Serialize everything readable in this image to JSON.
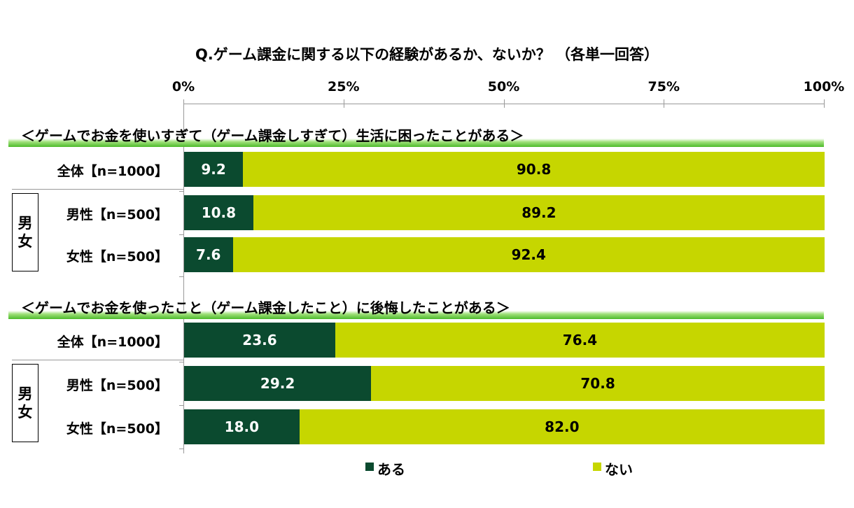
{
  "chart_data": {
    "type": "bar",
    "orientation": "horizontal",
    "stacked": true,
    "title": "Q.ゲーム課金に関する以下の経験があるか、ないか？ （各単一回答）",
    "xlim": [
      0,
      100
    ],
    "xticks": [
      "0%",
      "25%",
      "50%",
      "75%",
      "100%"
    ],
    "legend": [
      {
        "name": "ある",
        "color": "#0b4a2f"
      },
      {
        "name": "ない",
        "color": "#c6d600"
      }
    ],
    "legend_position": "bottom",
    "groups": [
      {
        "heading": "＜ゲームでお金を使いすぎて（ゲーム課金しすぎて）生活に困ったことがある＞",
        "rows": [
          {
            "label": "全体【n=1000】",
            "aru": 9.2,
            "nai": 90.8,
            "aru_label": "9.2",
            "nai_label": "90.8"
          },
          {
            "label": "男性【n=500】",
            "aru": 10.8,
            "nai": 89.2,
            "aru_label": "10.8",
            "nai_label": "89.2"
          },
          {
            "label": "女性【n=500】",
            "aru": 7.6,
            "nai": 92.4,
            "aru_label": "7.6",
            "nai_label": "92.4"
          }
        ]
      },
      {
        "heading": "＜ゲームでお金を使ったこと（ゲーム課金したこと）に後悔したことがある＞",
        "rows": [
          {
            "label": "全体【n=1000】",
            "aru": 23.6,
            "nai": 76.4,
            "aru_label": "23.6",
            "nai_label": "76.4"
          },
          {
            "label": "男性【n=500】",
            "aru": 29.2,
            "nai": 70.8,
            "aru_label": "29.2",
            "nai_label": "70.8"
          },
          {
            "label": "女性【n=500】",
            "aru": 18.0,
            "nai": 82.0,
            "aru_label": "18.0",
            "nai_label": "82.0"
          }
        ]
      }
    ],
    "gender_box_label": [
      "男",
      "女"
    ]
  }
}
